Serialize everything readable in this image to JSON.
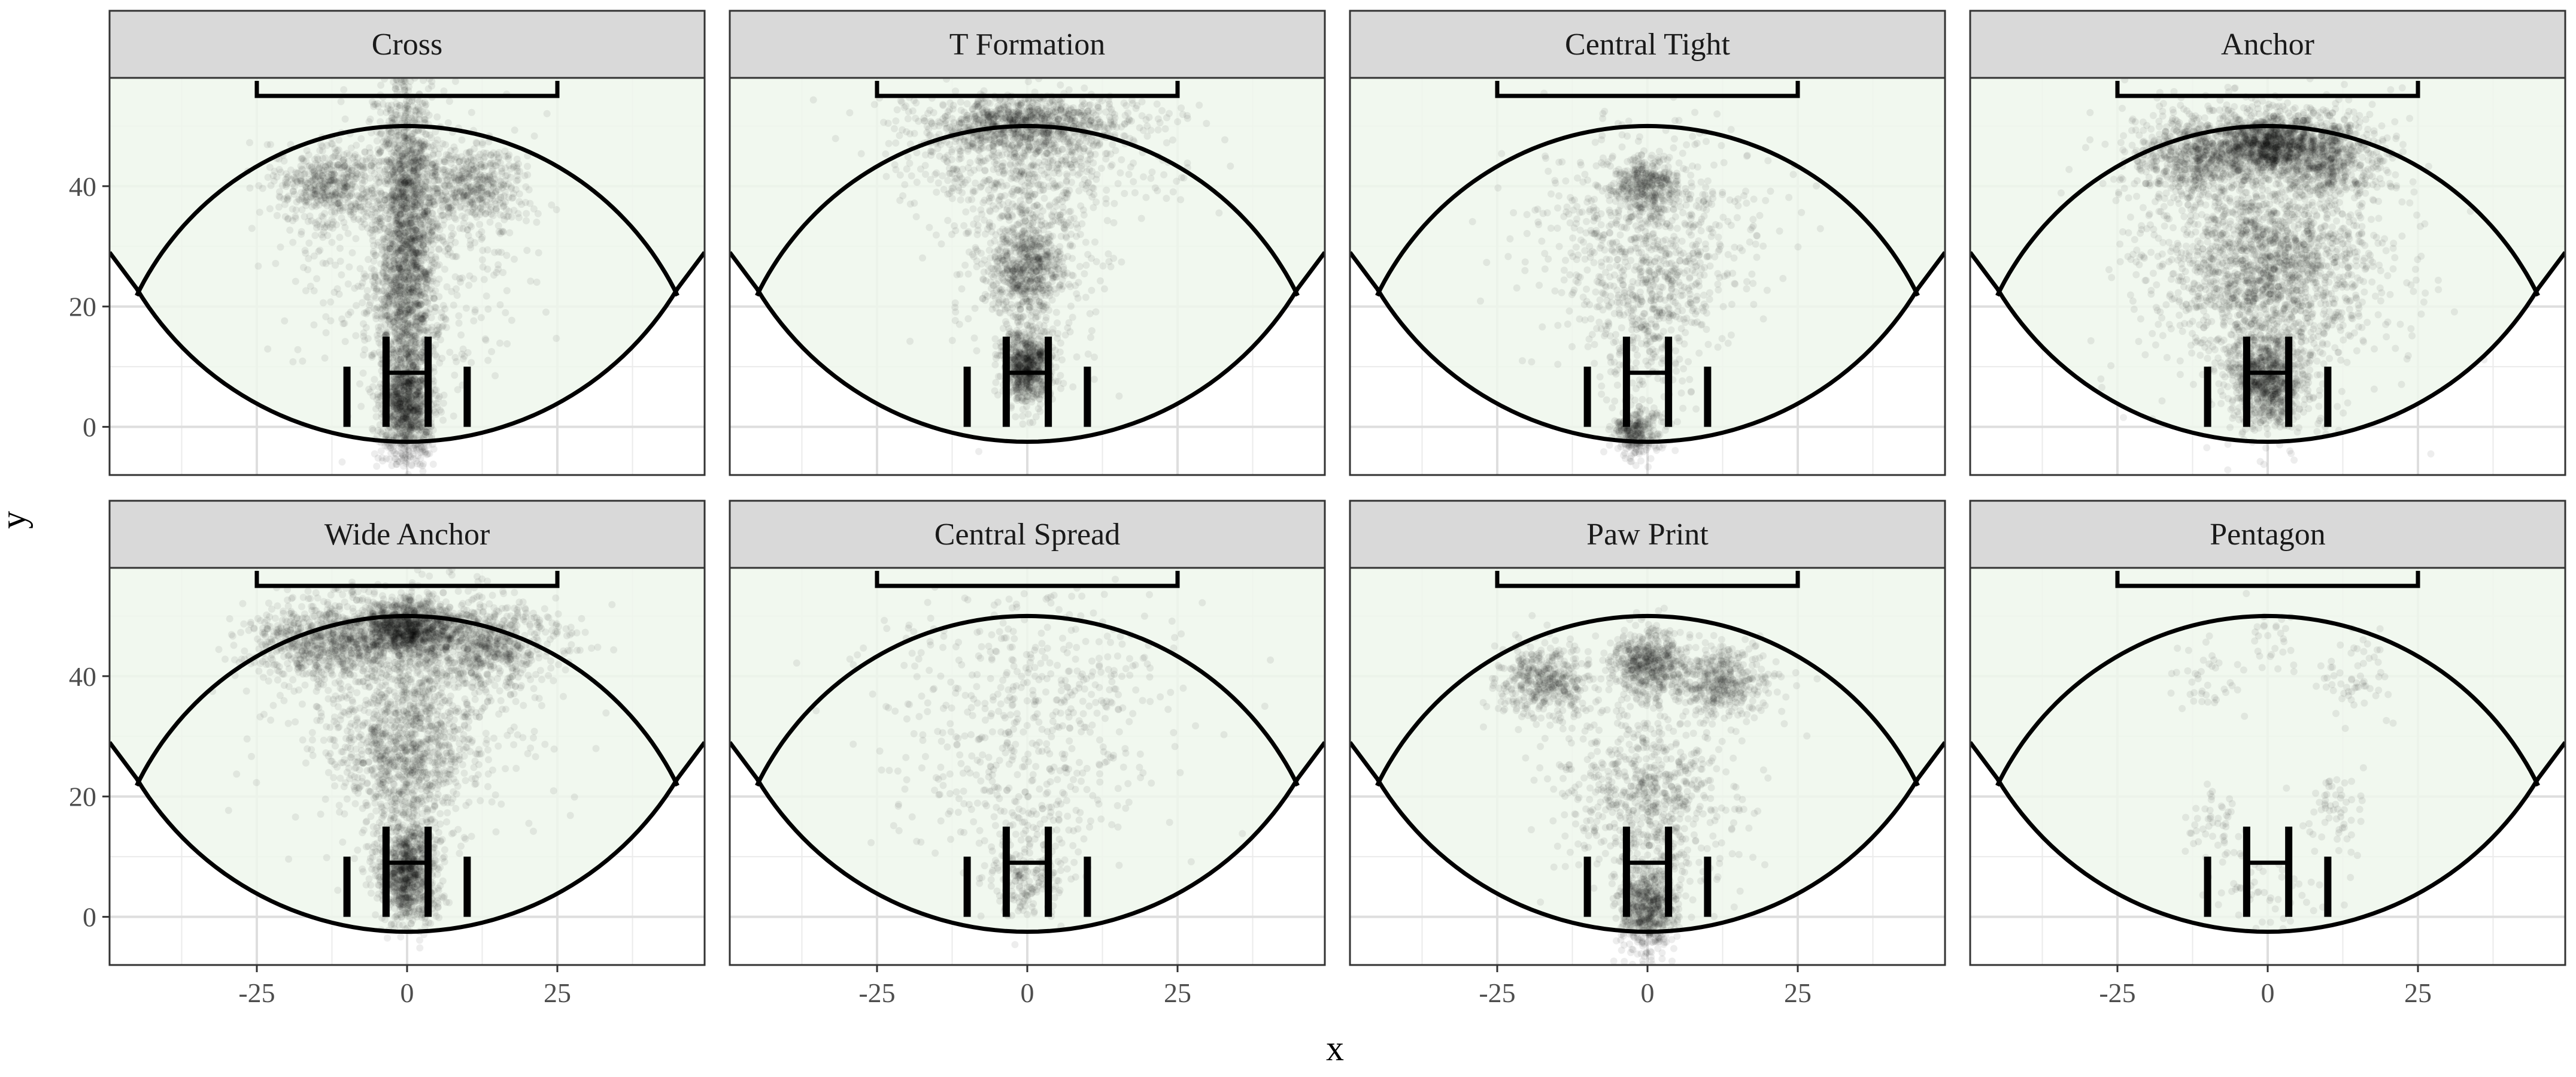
{
  "chart_data": {
    "type": "scatter",
    "layout": "facet grid, 2 rows x 4 columns",
    "xlabel": "x",
    "ylabel": "y",
    "xlim": [
      -49.5,
      49.5
    ],
    "ylim": [
      -8,
      58
    ],
    "x_ticks": [
      -25,
      0,
      25
    ],
    "x_tick_labels": [
      "-25",
      "0",
      "25"
    ],
    "y_ticks": [
      0,
      20,
      40
    ],
    "y_tick_labels": [
      "0",
      "20",
      "40"
    ],
    "grid": true,
    "legend": "none",
    "field_shapes": {
      "arc_center": [
        0,
        0
      ],
      "arc_radius": 50,
      "top_bar": {
        "x_from": -25,
        "x_to": 25,
        "y": 55,
        "tick_down_to": 57.5
      },
      "boundary_curve_edges": [
        [
          -49.5,
          29
        ],
        [
          -45,
          23
        ],
        [
          45,
          23
        ],
        [
          49.5,
          29
        ]
      ],
      "posts": [
        {
          "x": -10,
          "y_from": 0,
          "y_to": 10
        },
        {
          "x": -3.5,
          "y_from": 0,
          "y_to": 15
        },
        {
          "x": 3.5,
          "y_from": 0,
          "y_to": 15
        },
        {
          "x": 10,
          "y_from": 0,
          "y_to": 10
        }
      ],
      "crossbar": {
        "x_from": -3.5,
        "x_to": 3.5,
        "y": 9
      }
    },
    "panels": [
      {
        "title": "Cross",
        "density": "high",
        "clusters": [
          {
            "x": 0,
            "y": 40,
            "sx": 2.5,
            "sy": 9,
            "n": 1100
          },
          {
            "x": -13,
            "y": 40,
            "sx": 4.5,
            "sy": 3.5,
            "n": 500
          },
          {
            "x": 11,
            "y": 40,
            "sx": 4.5,
            "sy": 3.5,
            "n": 450
          },
          {
            "x": 0,
            "y": 20,
            "sx": 2.8,
            "sy": 8,
            "n": 900
          },
          {
            "x": 0,
            "y": 3,
            "sx": 2.2,
            "sy": 4.5,
            "n": 900
          },
          {
            "x": 0,
            "y": 30,
            "sx": 10,
            "sy": 12,
            "n": 500
          }
        ]
      },
      {
        "title": "T Formation",
        "density": "high",
        "clusters": [
          {
            "x": 0,
            "y": 50.5,
            "sx": 9,
            "sy": 2.2,
            "n": 900
          },
          {
            "x": 0,
            "y": 44,
            "sx": 11,
            "sy": 4.5,
            "n": 500
          },
          {
            "x": 0,
            "y": 26,
            "sx": 3,
            "sy": 4,
            "n": 500
          },
          {
            "x": 0,
            "y": 10,
            "sx": 2,
            "sy": 3,
            "n": 700
          },
          {
            "x": 0,
            "y": 30,
            "sx": 6,
            "sy": 10,
            "n": 500
          }
        ]
      },
      {
        "title": "Central Tight",
        "density": "medium",
        "clusters": [
          {
            "x": 0,
            "y": 40,
            "sx": 2.5,
            "sy": 2.5,
            "n": 350
          },
          {
            "x": 0,
            "y": 32,
            "sx": 10,
            "sy": 8,
            "n": 650
          },
          {
            "x": 0,
            "y": 18,
            "sx": 5,
            "sy": 7,
            "n": 350
          },
          {
            "x": -2,
            "y": -1,
            "sx": 2,
            "sy": 2,
            "n": 300
          }
        ]
      },
      {
        "title": "Anchor",
        "density": "very high",
        "clusters": [
          {
            "x": 0,
            "y": 47,
            "sx": 4,
            "sy": 2.5,
            "n": 1000
          },
          {
            "x": -12,
            "y": 45,
            "sx": 5,
            "sy": 3.5,
            "n": 700
          },
          {
            "x": 10,
            "y": 45,
            "sx": 5,
            "sy": 3.5,
            "n": 700
          },
          {
            "x": 0,
            "y": 26,
            "sx": 8,
            "sy": 7,
            "n": 1400
          },
          {
            "x": 0,
            "y": 8,
            "sx": 3,
            "sy": 4,
            "n": 900
          },
          {
            "x": 0,
            "y": 30,
            "sx": 12,
            "sy": 14,
            "n": 700
          }
        ]
      },
      {
        "title": "Wide Anchor",
        "density": "very high",
        "clusters": [
          {
            "x": 0,
            "y": 48,
            "sx": 4,
            "sy": 2.5,
            "n": 1100
          },
          {
            "x": -13,
            "y": 46,
            "sx": 6,
            "sy": 3.5,
            "n": 800
          },
          {
            "x": 13,
            "y": 45,
            "sx": 6,
            "sy": 3.5,
            "n": 700
          },
          {
            "x": 0,
            "y": 28,
            "sx": 5,
            "sy": 8,
            "n": 1000
          },
          {
            "x": 0,
            "y": 7,
            "sx": 2.5,
            "sy": 4,
            "n": 900
          },
          {
            "x": 0,
            "y": 35,
            "sx": 12,
            "sy": 10,
            "n": 500
          }
        ]
      },
      {
        "title": "Central Spread",
        "density": "low",
        "clusters": [
          {
            "x": 0,
            "y": 38,
            "sx": 12,
            "sy": 8,
            "n": 380
          },
          {
            "x": 0,
            "y": 20,
            "sx": 11,
            "sy": 8,
            "n": 250
          },
          {
            "x": 0,
            "y": 6,
            "sx": 3,
            "sy": 3.5,
            "n": 180
          }
        ]
      },
      {
        "title": "Paw Print",
        "density": "high",
        "clusters": [
          {
            "x": 0,
            "y": 42,
            "sx": 3,
            "sy": 3,
            "n": 550
          },
          {
            "x": -17,
            "y": 39,
            "sx": 4,
            "sy": 3,
            "n": 450
          },
          {
            "x": 12,
            "y": 39,
            "sx": 4,
            "sy": 3,
            "n": 450
          },
          {
            "x": 0,
            "y": 20,
            "sx": 7,
            "sy": 7,
            "n": 700
          },
          {
            "x": 0,
            "y": 2,
            "sx": 2.5,
            "sy": 4,
            "n": 650
          }
        ]
      },
      {
        "title": "Pentagon",
        "density": "very low",
        "clusters": [
          {
            "x": -10,
            "y": 40,
            "sx": 3,
            "sy": 3,
            "n": 40
          },
          {
            "x": 0,
            "y": 46,
            "sx": 2.5,
            "sy": 3,
            "n": 30
          },
          {
            "x": 15,
            "y": 40,
            "sx": 3,
            "sy": 3.5,
            "n": 60
          },
          {
            "x": -10,
            "y": 17,
            "sx": 3,
            "sy": 4,
            "n": 50
          },
          {
            "x": 11,
            "y": 17,
            "sx": 3,
            "sy": 4,
            "n": 60
          },
          {
            "x": 0,
            "y": 4,
            "sx": 5,
            "sy": 3,
            "n": 50
          }
        ]
      }
    ]
  },
  "colors": {
    "panel_fill": "#eef7ec",
    "strip_fill": "#d9d9d9",
    "grid_major": "#dedede",
    "grid_minor": "#ebebeb",
    "frame": "#333333",
    "field_lines": "#000000",
    "points": "#000000"
  }
}
